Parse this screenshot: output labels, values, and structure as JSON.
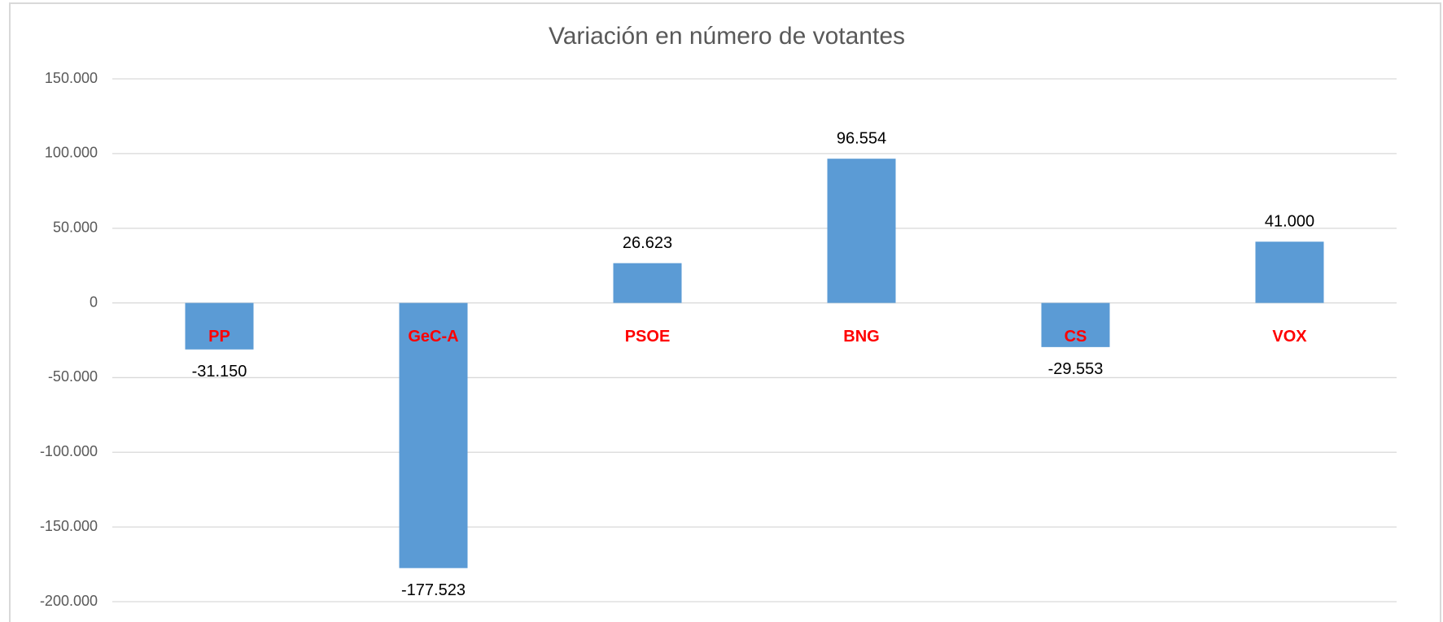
{
  "chart_data": {
    "type": "bar",
    "title": "Variación en número de votantes",
    "categories": [
      "PP",
      "GeC-A",
      "PSOE",
      "BNG",
      "CS",
      "VOX"
    ],
    "values": [
      -31150,
      -177523,
      26623,
      96554,
      -29553,
      41000
    ],
    "value_labels": [
      "-31.150",
      "-177.523",
      "26.623",
      "96.554",
      "-29.553",
      "41.000"
    ],
    "color": "#5b9bd5",
    "category_label_color": "#ff0000",
    "ylim": [
      -200000,
      150000
    ],
    "yticks": [
      {
        "value": -200000,
        "label": "-200.000"
      },
      {
        "value": -150000,
        "label": "-150.000"
      },
      {
        "value": -100000,
        "label": "-100.000"
      },
      {
        "value": -50000,
        "label": "-50.000"
      },
      0,
      {
        "value": 50000,
        "label": "50.000"
      },
      {
        "value": 100000,
        "label": "100.000"
      },
      {
        "value": 150000,
        "label": "150.000"
      }
    ],
    "grid": true
  }
}
